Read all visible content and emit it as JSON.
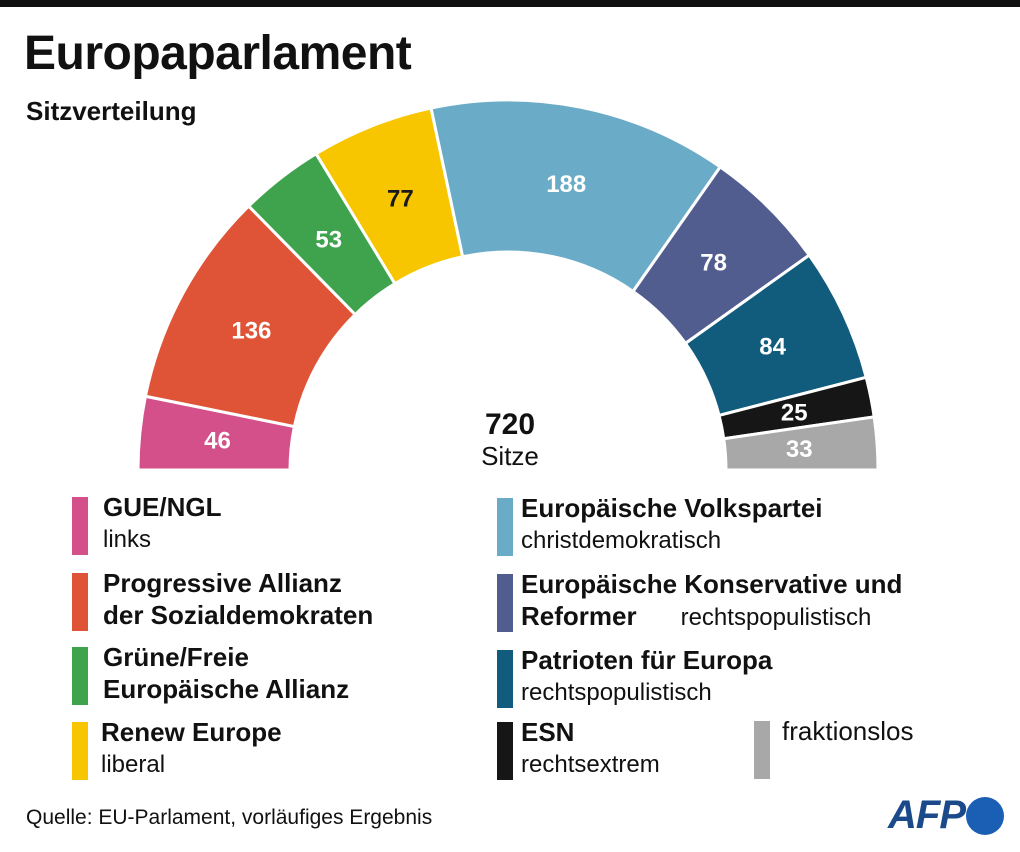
{
  "title": "Europaparlament",
  "subtitle": "Sitzverteilung",
  "chart_data": {
    "type": "pie",
    "variant": "half-donut (hemicycle)",
    "title": "Europaparlament",
    "subtitle": "Sitzverteilung",
    "categories": [
      "GUE/NGL",
      "Progressive Allianz der Sozialdemokraten",
      "Grüne/Freie Europäische Allianz",
      "Renew Europe",
      "Europäische Volkspartei",
      "Europäische Konservative und Reformer",
      "Patrioten für Europa",
      "ESN",
      "fraktionslos"
    ],
    "values": [
      46,
      136,
      53,
      77,
      188,
      78,
      84,
      25,
      33
    ],
    "colors": [
      "#d4508a",
      "#df5437",
      "#3fa34d",
      "#f7c600",
      "#6aabc7",
      "#525d8f",
      "#115c7c",
      "#161616",
      "#a8a8a8"
    ],
    "label_colors": [
      "#ffffff",
      "#ffffff",
      "#ffffff",
      "#1a1a1a",
      "#ffffff",
      "#ffffff",
      "#ffffff",
      "#ffffff",
      "#ffffff"
    ],
    "total": {
      "value": "720",
      "unit": "Sitze"
    }
  },
  "legend": [
    {
      "name": "GUE/NGL",
      "description": "links",
      "color": "#d4508a"
    },
    {
      "name": "Progressive Allianz der Sozialdemokraten",
      "name_line1": "Progressive Allianz",
      "name_line2": "der Sozialdemokraten",
      "color": "#df5437"
    },
    {
      "name": "Grüne/Freie Europäische Allianz",
      "name_line1": "Grüne/Freie",
      "name_line2": "Europäische Allianz",
      "color": "#3fa34d"
    },
    {
      "name": "Renew Europe",
      "description": "liberal",
      "color": "#f7c600"
    },
    {
      "name": "Europäische Volkspartei",
      "description": "christdemokratisch",
      "color": "#6aabc7"
    },
    {
      "name": "Europäische Konservative und Reformer",
      "name_line1": "Europäische Konservative und",
      "name_line2": "Reformer",
      "description": "rechtspopulistisch",
      "color": "#525d8f"
    },
    {
      "name": "Patrioten für Europa",
      "description": "rechtspopulistisch",
      "color": "#115c7c"
    },
    {
      "name": "ESN",
      "description": "rechtsextrem",
      "color": "#161616"
    },
    {
      "name": "fraktionslos",
      "color": "#a8a8a8"
    }
  ],
  "source": "Quelle: EU-Parlament, vorläufiges Ergebnis",
  "logo": "AFP"
}
